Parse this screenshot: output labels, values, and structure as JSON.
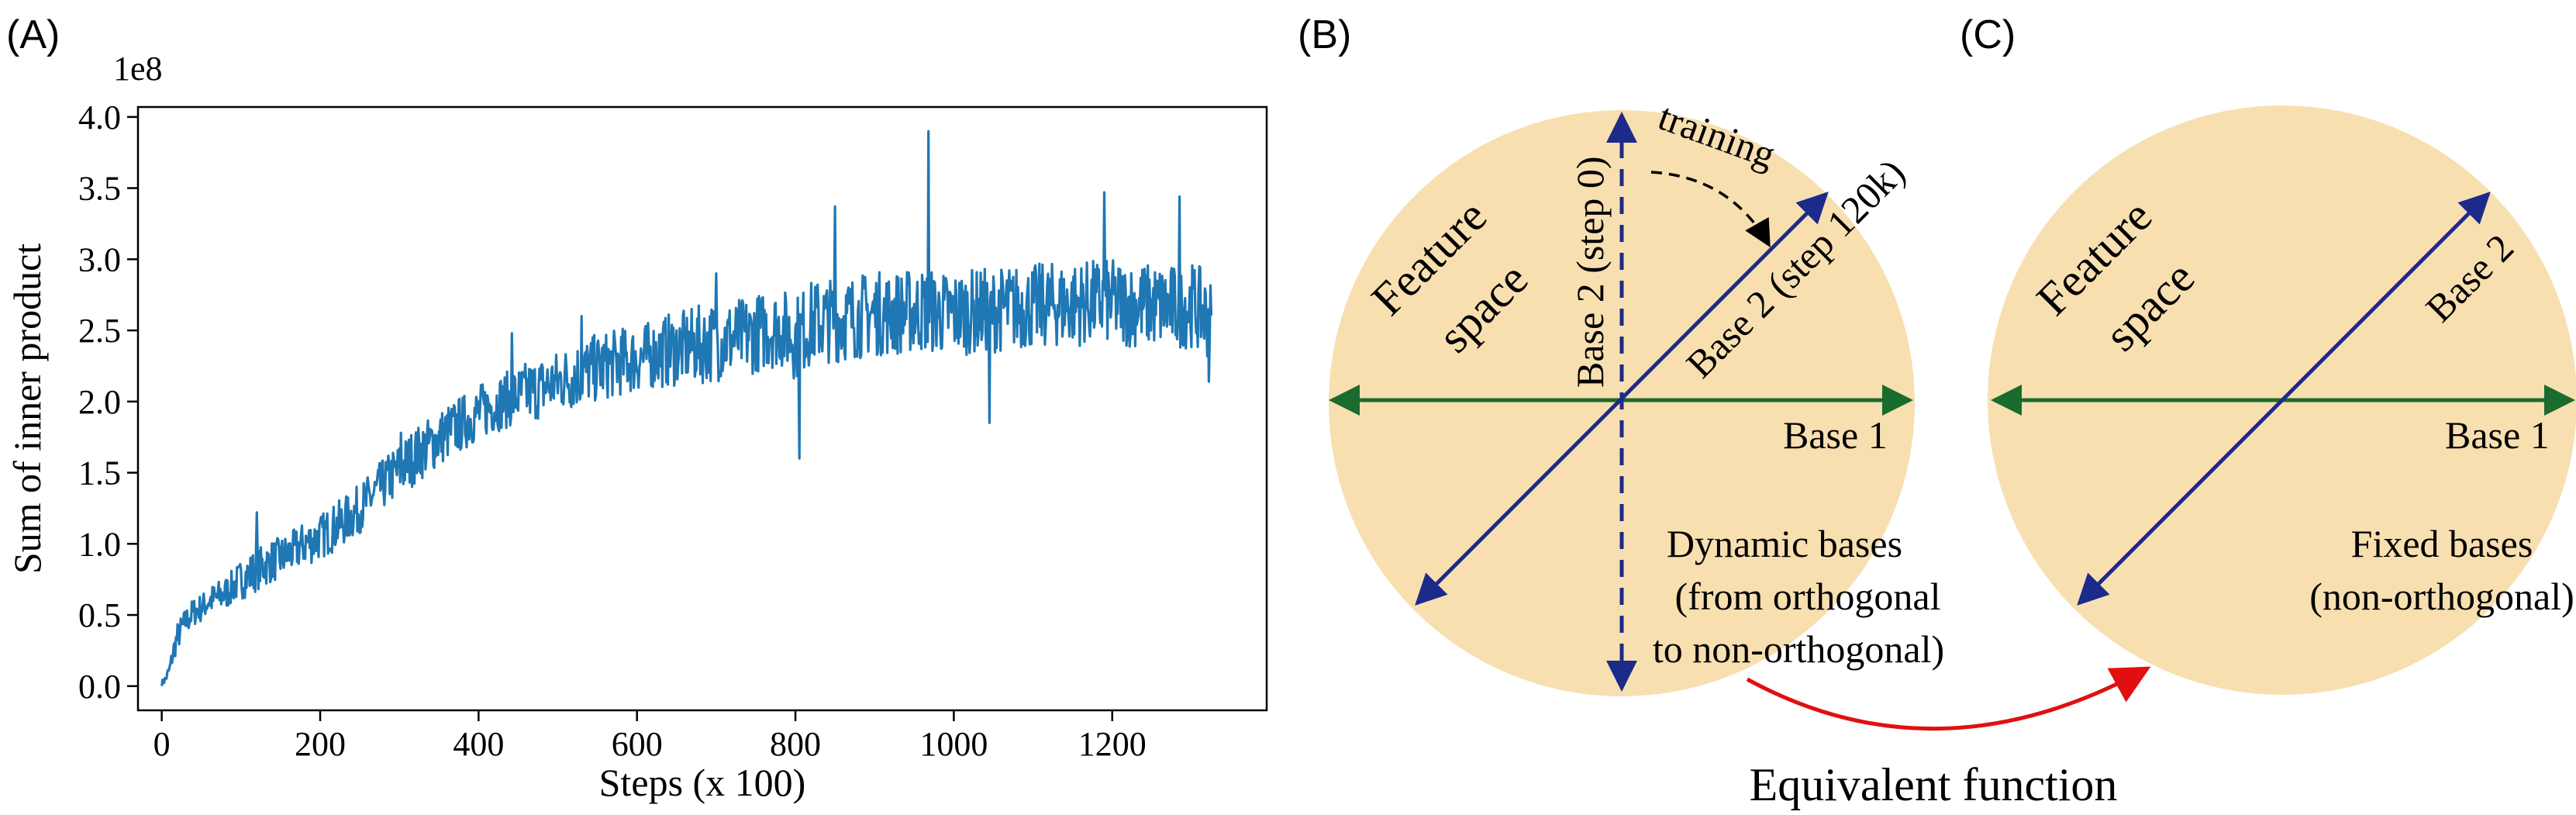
{
  "panels": {
    "a": {
      "tag": "(A)"
    },
    "b": {
      "tag": "(B)"
    },
    "c": {
      "tag": "(C)"
    }
  },
  "chart_data": {
    "type": "line",
    "title": "",
    "xlabel": "Steps (x 100)",
    "ylabel": "Sum of inner product",
    "y_offset_label": "1e8",
    "xlim": [
      -30,
      1395
    ],
    "ylim": [
      -0.17,
      4.07
    ],
    "x_ticks": [
      0,
      200,
      400,
      600,
      800,
      1000,
      1200
    ],
    "y_ticks": [
      0.0,
      0.5,
      1.0,
      1.5,
      2.0,
      2.5,
      3.0,
      3.5,
      4.0
    ],
    "x_tick_labels": [
      "0",
      "200",
      "400",
      "600",
      "800",
      "1000",
      "1200"
    ],
    "y_tick_labels": [
      "0.0",
      "0.5",
      "1.0",
      "1.5",
      "2.0",
      "2.5",
      "3.0",
      "3.5",
      "4.0"
    ],
    "grid": false,
    "series_color": "#1f77b4",
    "series": [
      {
        "x": [
          0,
          5,
          10,
          15,
          20,
          30,
          40,
          50,
          60,
          70,
          80,
          90,
          100,
          110,
          120,
          130,
          140,
          150,
          160,
          170,
          180,
          190,
          200,
          220,
          240,
          260,
          280,
          300,
          320,
          340,
          360,
          380,
          400,
          420,
          440,
          460,
          480,
          500,
          520,
          540,
          560,
          580,
          600,
          620,
          640,
          660,
          680,
          700,
          720,
          740,
          760,
          780,
          800,
          820,
          840,
          860,
          880,
          900,
          920,
          940,
          960,
          970,
          980,
          1000,
          1020,
          1040,
          1060,
          1080,
          1100,
          1120,
          1140,
          1160,
          1180,
          1200,
          1220,
          1240,
          1260,
          1280,
          1300,
          1310,
          1320,
          1325
        ],
        "y": [
          0.02,
          0.05,
          0.12,
          0.25,
          0.35,
          0.45,
          0.52,
          0.55,
          0.6,
          0.62,
          0.65,
          0.7,
          0.75,
          0.78,
          0.82,
          0.85,
          0.88,
          0.9,
          0.93,
          0.96,
          1.0,
          1.02,
          1.05,
          1.12,
          1.2,
          1.3,
          1.42,
          1.52,
          1.62,
          1.7,
          1.78,
          1.85,
          1.92,
          1.98,
          2.02,
          2.06,
          2.1,
          2.14,
          2.18,
          2.22,
          2.25,
          2.28,
          2.3,
          2.33,
          2.36,
          2.38,
          2.4,
          2.42,
          2.44,
          2.46,
          2.5,
          2.52,
          2.45,
          2.55,
          2.57,
          2.58,
          2.6,
          2.62,
          2.62,
          2.63,
          2.64,
          2.64,
          2.62,
          2.62,
          2.63,
          2.64,
          2.65,
          2.66,
          2.67,
          2.68,
          2.68,
          2.69,
          2.7,
          2.7,
          2.68,
          2.68,
          2.67,
          2.66,
          2.68,
          2.65,
          2.6,
          2.55
        ],
        "spread": [
          0.02,
          0.03,
          0.05,
          0.08,
          0.1,
          0.1,
          0.1,
          0.1,
          0.1,
          0.12,
          0.12,
          0.12,
          0.14,
          0.15,
          0.15,
          0.15,
          0.15,
          0.15,
          0.15,
          0.15,
          0.16,
          0.16,
          0.16,
          0.17,
          0.17,
          0.18,
          0.18,
          0.2,
          0.2,
          0.2,
          0.2,
          0.2,
          0.2,
          0.2,
          0.2,
          0.22,
          0.22,
          0.22,
          0.24,
          0.24,
          0.24,
          0.24,
          0.24,
          0.24,
          0.26,
          0.26,
          0.28,
          0.28,
          0.28,
          0.28,
          0.28,
          0.28,
          0.3,
          0.3,
          0.3,
          0.3,
          0.3,
          0.3,
          0.3,
          0.3,
          0.3,
          0.3,
          0.3,
          0.3,
          0.3,
          0.3,
          0.3,
          0.3,
          0.3,
          0.3,
          0.3,
          0.3,
          0.3,
          0.3,
          0.3,
          0.3,
          0.3,
          0.3,
          0.3,
          0.3,
          0.3,
          0.3
        ],
        "peaks": [
          [
            120,
            1.22
          ],
          [
            302,
            1.78
          ],
          [
            442,
            2.48
          ],
          [
            530,
            2.6
          ],
          [
            700,
            2.9
          ],
          [
            805,
            1.6
          ],
          [
            850,
            3.37
          ],
          [
            968,
            3.9
          ],
          [
            1045,
            1.85
          ],
          [
            1190,
            3.47
          ],
          [
            1285,
            3.44
          ],
          [
            1322,
            2.14
          ],
          [
            1328,
            3.12
          ]
        ]
      }
    ]
  },
  "diagram_b": {
    "feature_label_1": "Feature",
    "feature_label_2": "space",
    "base1": "Base 1",
    "base2_step0": "Base 2 (step 0)",
    "base2_step120k": "Base 2 (step 120k)",
    "training": "training",
    "caption_1": "Dynamic bases",
    "caption_2": "(from orthogonal",
    "caption_3": "to non-orthogonal)"
  },
  "diagram_c": {
    "feature_label_1": "Feature",
    "feature_label_2": "space",
    "base1": "Base 1",
    "base2": "Base 2",
    "caption_1": "Fixed bases",
    "caption_2": "(non-orthogonal)"
  },
  "equivalence_label": "Equivalent function",
  "colors": {
    "circle_fill": "#f8dfb0",
    "base1": "#1a6b2e",
    "base2": "#1c2a8a",
    "equivalence_arrow": "#e01010",
    "series": "#1f77b4"
  }
}
